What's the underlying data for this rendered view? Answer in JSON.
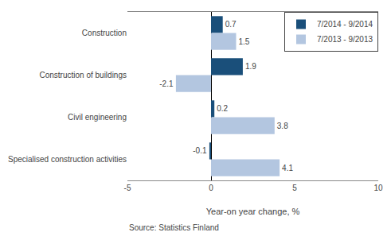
{
  "chart_data": {
    "type": "bar",
    "orientation": "horizontal",
    "categories": [
      "Construction",
      "Construction of buildings",
      "Civil engineering",
      "Specialised construction activities"
    ],
    "series": [
      {
        "name": "7/2014 - 9/2014",
        "color": "#1a4f7a",
        "values": [
          0.7,
          1.9,
          0.2,
          -0.1
        ]
      },
      {
        "name": "7/2013 - 9/2013",
        "color": "#b3c6e0",
        "values": [
          1.5,
          -2.1,
          3.8,
          4.1
        ]
      }
    ],
    "xlabel": "Year-on year change, %",
    "xlim": [
      -5,
      10
    ],
    "xticks": [
      -5,
      0,
      5,
      10
    ],
    "data_labels": true,
    "legend": "upper right",
    "grid": false,
    "annotations": [
      "Source: Statistics Finland"
    ]
  }
}
